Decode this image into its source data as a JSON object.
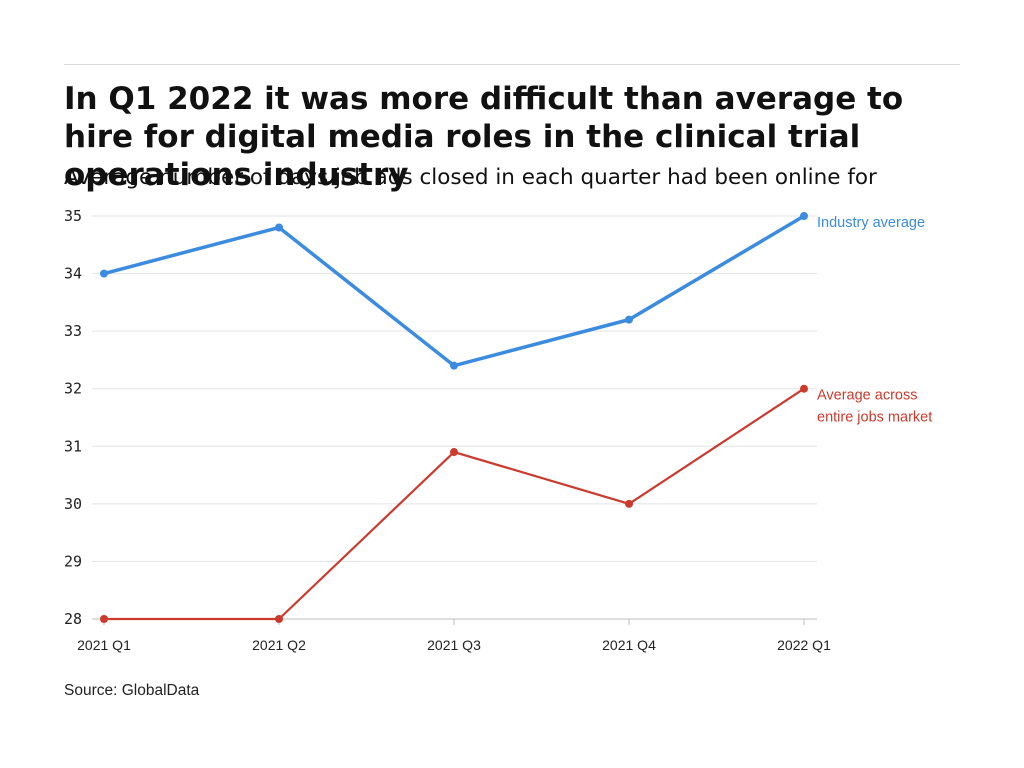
{
  "header": {
    "title": "In Q1 2022 it was more difficult than average to hire for digital media roles in the clinical trial operations industry",
    "subtitle": "Average number of days job ads closed in each quarter had been online for"
  },
  "footer": {
    "source": "Source: GlobalData"
  },
  "colors": {
    "industry": "#3b8be0",
    "market": "#cc3a2e",
    "grid": "#e3e3e3",
    "axis": "#bdbdbd"
  },
  "chart_data": {
    "type": "line",
    "title": "In Q1 2022 it was more difficult than average to hire for digital media roles in the clinical trial operations industry",
    "subtitle": "Average number of days job ads closed in each quarter had been online for",
    "categories": [
      "2021 Q1",
      "2021 Q2",
      "2021 Q3",
      "2021 Q4",
      "2022 Q1"
    ],
    "ylim": [
      28,
      35
    ],
    "yticks": [
      28,
      29,
      30,
      31,
      32,
      33,
      34,
      35
    ],
    "xlabel": "",
    "ylabel": "",
    "grid": true,
    "series": [
      {
        "name": "Industry average",
        "label_lines": [
          "Industry average"
        ],
        "values": [
          34.0,
          34.8,
          32.4,
          33.2,
          35.0
        ],
        "color": "#3b8be0"
      },
      {
        "name": "Average across entire jobs market",
        "label_lines": [
          "Average across",
          "entire jobs market"
        ],
        "values": [
          28.0,
          28.0,
          30.9,
          30.0,
          32.0
        ],
        "color": "#cc3a2e"
      }
    ]
  }
}
